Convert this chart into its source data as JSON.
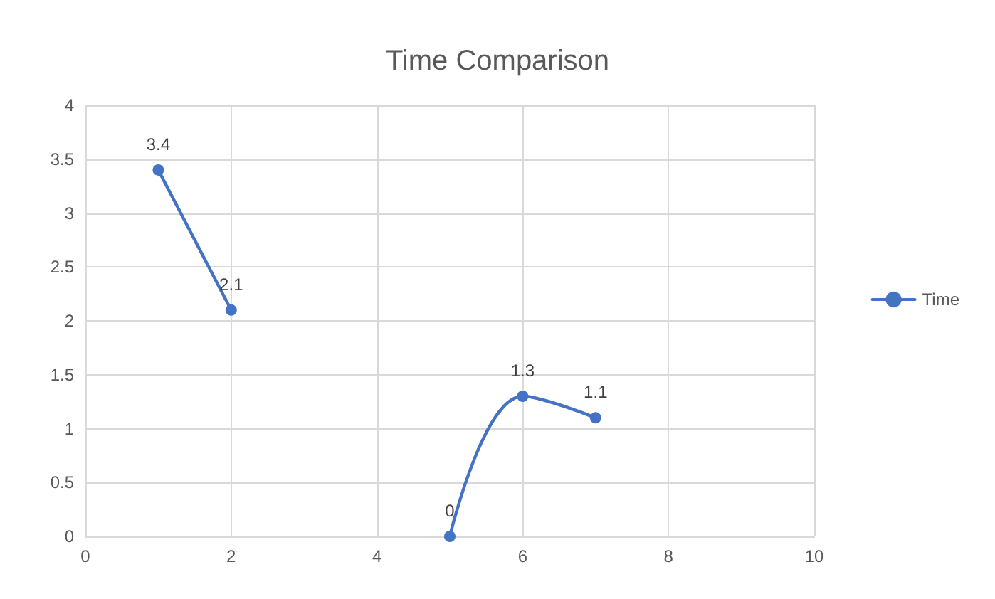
{
  "chart_data": {
    "type": "line",
    "title": "Time Comparison",
    "x": [
      1,
      2,
      3,
      5,
      6,
      7
    ],
    "series": [
      {
        "name": "Time",
        "color": "#4472c4",
        "values": [
          3.4,
          2.1,
          null,
          0,
          1.3,
          1.1
        ]
      }
    ],
    "xlim": [
      0,
      10
    ],
    "xticks": [
      0,
      2,
      4,
      6,
      8,
      10
    ],
    "ylim": [
      0,
      4
    ],
    "yticks": [
      0,
      0.5,
      1,
      1.5,
      2,
      2.5,
      3,
      3.5,
      4
    ],
    "grid": true,
    "legend": "right",
    "marker": "circle",
    "line_style": "solid",
    "data_labels": true
  }
}
